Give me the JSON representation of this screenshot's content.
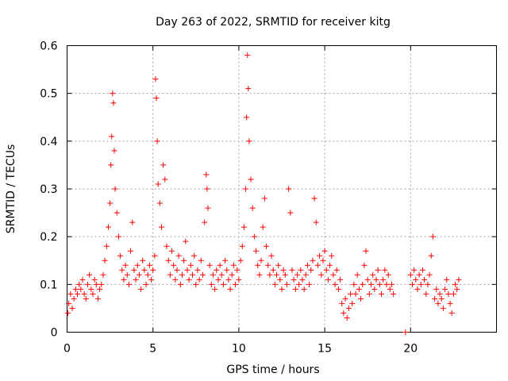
{
  "chart_data": {
    "type": "scatter",
    "title": "Day 263 of 2022, SRMTID for receiver kitg",
    "xlabel": "GPS time / hours",
    "ylabel": "SRMTID / TECUs",
    "xlim": [
      0,
      25
    ],
    "ylim": [
      0,
      0.6
    ],
    "xticks": [
      0,
      5,
      10,
      15,
      20
    ],
    "yticks": [
      0,
      0.1,
      0.2,
      0.3,
      0.4,
      0.5,
      0.6
    ],
    "xtick_labels": [
      "0",
      "5",
      "10",
      "15",
      "20"
    ],
    "ytick_labels": [
      "0",
      "0.1",
      "0.2",
      "0.3",
      "0.4",
      "0.5",
      "0.6"
    ],
    "grid": true,
    "marker": "plus",
    "color": "#ff0000",
    "series": [
      {
        "name": "SRMTID",
        "points": [
          [
            0.05,
            0.04
          ],
          [
            0.1,
            0.06
          ],
          [
            0.2,
            0.08
          ],
          [
            0.3,
            0.05
          ],
          [
            0.4,
            0.07
          ],
          [
            0.5,
            0.09
          ],
          [
            0.6,
            0.08
          ],
          [
            0.7,
            0.1
          ],
          [
            0.8,
            0.09
          ],
          [
            0.9,
            0.11
          ],
          [
            1.0,
            0.08
          ],
          [
            1.1,
            0.07
          ],
          [
            1.2,
            0.1
          ],
          [
            1.3,
            0.12
          ],
          [
            1.4,
            0.09
          ],
          [
            1.5,
            0.08
          ],
          [
            1.6,
            0.11
          ],
          [
            1.7,
            0.1
          ],
          [
            1.8,
            0.07
          ],
          [
            1.9,
            0.09
          ],
          [
            2.0,
            0.1
          ],
          [
            2.1,
            0.12
          ],
          [
            2.2,
            0.15
          ],
          [
            2.3,
            0.18
          ],
          [
            2.4,
            0.22
          ],
          [
            2.5,
            0.27
          ],
          [
            2.55,
            0.35
          ],
          [
            2.6,
            0.41
          ],
          [
            2.65,
            0.5
          ],
          [
            2.7,
            0.48
          ],
          [
            2.75,
            0.38
          ],
          [
            2.8,
            0.3
          ],
          [
            2.9,
            0.25
          ],
          [
            3.0,
            0.2
          ],
          [
            3.1,
            0.16
          ],
          [
            3.2,
            0.13
          ],
          [
            3.3,
            0.11
          ],
          [
            3.4,
            0.14
          ],
          [
            3.5,
            0.12
          ],
          [
            3.6,
            0.1
          ],
          [
            3.7,
            0.17
          ],
          [
            3.8,
            0.23
          ],
          [
            3.9,
            0.13
          ],
          [
            4.0,
            0.11
          ],
          [
            4.1,
            0.14
          ],
          [
            4.2,
            0.12
          ],
          [
            4.3,
            0.09
          ],
          [
            4.4,
            0.15
          ],
          [
            4.5,
            0.13
          ],
          [
            4.6,
            0.1
          ],
          [
            4.7,
            0.12
          ],
          [
            4.8,
            0.14
          ],
          [
            4.9,
            0.11
          ],
          [
            5.0,
            0.13
          ],
          [
            5.1,
            0.16
          ],
          [
            5.15,
            0.53
          ],
          [
            5.2,
            0.49
          ],
          [
            5.25,
            0.4
          ],
          [
            5.3,
            0.31
          ],
          [
            5.4,
            0.27
          ],
          [
            5.5,
            0.22
          ],
          [
            5.6,
            0.35
          ],
          [
            5.7,
            0.32
          ],
          [
            5.8,
            0.18
          ],
          [
            5.9,
            0.15
          ],
          [
            6.0,
            0.12
          ],
          [
            6.1,
            0.17
          ],
          [
            6.2,
            0.14
          ],
          [
            6.3,
            0.11
          ],
          [
            6.4,
            0.13
          ],
          [
            6.5,
            0.16
          ],
          [
            6.6,
            0.1
          ],
          [
            6.7,
            0.12
          ],
          [
            6.8,
            0.15
          ],
          [
            6.9,
            0.19
          ],
          [
            7.0,
            0.13
          ],
          [
            7.1,
            0.11
          ],
          [
            7.2,
            0.14
          ],
          [
            7.3,
            0.12
          ],
          [
            7.4,
            0.16
          ],
          [
            7.5,
            0.1
          ],
          [
            7.6,
            0.13
          ],
          [
            7.7,
            0.11
          ],
          [
            7.8,
            0.15
          ],
          [
            7.9,
            0.12
          ],
          [
            8.0,
            0.23
          ],
          [
            8.1,
            0.33
          ],
          [
            8.15,
            0.3
          ],
          [
            8.2,
            0.26
          ],
          [
            8.3,
            0.14
          ],
          [
            8.4,
            0.1
          ],
          [
            8.5,
            0.12
          ],
          [
            8.6,
            0.09
          ],
          [
            8.7,
            0.13
          ],
          [
            8.8,
            0.11
          ],
          [
            8.9,
            0.14
          ],
          [
            9.0,
            0.12
          ],
          [
            9.1,
            0.1
          ],
          [
            9.2,
            0.15
          ],
          [
            9.3,
            0.13
          ],
          [
            9.4,
            0.11
          ],
          [
            9.5,
            0.09
          ],
          [
            9.6,
            0.12
          ],
          [
            9.7,
            0.14
          ],
          [
            9.8,
            0.1
          ],
          [
            9.9,
            0.13
          ],
          [
            10.0,
            0.11
          ],
          [
            10.1,
            0.15
          ],
          [
            10.2,
            0.18
          ],
          [
            10.3,
            0.22
          ],
          [
            10.4,
            0.3
          ],
          [
            10.45,
            0.45
          ],
          [
            10.5,
            0.58
          ],
          [
            10.55,
            0.51
          ],
          [
            10.6,
            0.4
          ],
          [
            10.7,
            0.32
          ],
          [
            10.8,
            0.26
          ],
          [
            10.9,
            0.2
          ],
          [
            11.0,
            0.17
          ],
          [
            11.1,
            0.14
          ],
          [
            11.2,
            0.12
          ],
          [
            11.3,
            0.15
          ],
          [
            11.4,
            0.22
          ],
          [
            11.5,
            0.28
          ],
          [
            11.6,
            0.18
          ],
          [
            11.7,
            0.14
          ],
          [
            11.8,
            0.12
          ],
          [
            11.9,
            0.16
          ],
          [
            12.0,
            0.13
          ],
          [
            12.1,
            0.1
          ],
          [
            12.2,
            0.12
          ],
          [
            12.3,
            0.14
          ],
          [
            12.4,
            0.11
          ],
          [
            12.5,
            0.09
          ],
          [
            12.6,
            0.13
          ],
          [
            12.7,
            0.12
          ],
          [
            12.8,
            0.1
          ],
          [
            12.9,
            0.3
          ],
          [
            13.0,
            0.25
          ],
          [
            13.1,
            0.13
          ],
          [
            13.2,
            0.11
          ],
          [
            13.3,
            0.09
          ],
          [
            13.4,
            0.12
          ],
          [
            13.5,
            0.1
          ],
          [
            13.6,
            0.13
          ],
          [
            13.7,
            0.11
          ],
          [
            13.8,
            0.09
          ],
          [
            13.9,
            0.12
          ],
          [
            14.0,
            0.14
          ],
          [
            14.1,
            0.1
          ],
          [
            14.2,
            0.13
          ],
          [
            14.3,
            0.15
          ],
          [
            14.4,
            0.28
          ],
          [
            14.5,
            0.23
          ],
          [
            14.6,
            0.14
          ],
          [
            14.7,
            0.16
          ],
          [
            14.8,
            0.12
          ],
          [
            14.9,
            0.15
          ],
          [
            15.0,
            0.17
          ],
          [
            15.1,
            0.13
          ],
          [
            15.2,
            0.11
          ],
          [
            15.3,
            0.14
          ],
          [
            15.4,
            0.16
          ],
          [
            15.5,
            0.12
          ],
          [
            15.6,
            0.1
          ],
          [
            15.7,
            0.13
          ],
          [
            15.8,
            0.09
          ],
          [
            15.9,
            0.11
          ],
          [
            16.0,
            0.06
          ],
          [
            16.1,
            0.04
          ],
          [
            16.2,
            0.07
          ],
          [
            16.3,
            0.03
          ],
          [
            16.4,
            0.05
          ],
          [
            16.5,
            0.08
          ],
          [
            16.6,
            0.06
          ],
          [
            16.7,
            0.1
          ],
          [
            16.8,
            0.08
          ],
          [
            16.9,
            0.12
          ],
          [
            17.0,
            0.09
          ],
          [
            17.1,
            0.07
          ],
          [
            17.2,
            0.1
          ],
          [
            17.3,
            0.14
          ],
          [
            17.4,
            0.17
          ],
          [
            17.5,
            0.11
          ],
          [
            17.6,
            0.08
          ],
          [
            17.7,
            0.1
          ],
          [
            17.8,
            0.12
          ],
          [
            17.9,
            0.09
          ],
          [
            18.0,
            0.11
          ],
          [
            18.1,
            0.13
          ],
          [
            18.2,
            0.1
          ],
          [
            18.3,
            0.08
          ],
          [
            18.4,
            0.11
          ],
          [
            18.5,
            0.13
          ],
          [
            18.6,
            0.1
          ],
          [
            18.7,
            0.12
          ],
          [
            18.8,
            0.09
          ],
          [
            18.9,
            0.1
          ],
          [
            19.0,
            0.08
          ],
          [
            19.7,
            0.0
          ],
          [
            20.0,
            0.12
          ],
          [
            20.1,
            0.1
          ],
          [
            20.2,
            0.13
          ],
          [
            20.3,
            0.11
          ],
          [
            20.4,
            0.09
          ],
          [
            20.5,
            0.12
          ],
          [
            20.6,
            0.1
          ],
          [
            20.7,
            0.13
          ],
          [
            20.8,
            0.11
          ],
          [
            20.9,
            0.08
          ],
          [
            21.0,
            0.1
          ],
          [
            21.1,
            0.12
          ],
          [
            21.2,
            0.16
          ],
          [
            21.3,
            0.2
          ],
          [
            21.4,
            0.07
          ],
          [
            21.5,
            0.09
          ],
          [
            21.6,
            0.06
          ],
          [
            21.7,
            0.08
          ],
          [
            21.8,
            0.07
          ],
          [
            21.9,
            0.05
          ],
          [
            22.0,
            0.09
          ],
          [
            22.1,
            0.11
          ],
          [
            22.2,
            0.08
          ],
          [
            22.3,
            0.06
          ],
          [
            22.4,
            0.04
          ],
          [
            22.5,
            0.08
          ],
          [
            22.6,
            0.1
          ],
          [
            22.7,
            0.09
          ],
          [
            22.8,
            0.11
          ]
        ]
      }
    ]
  }
}
